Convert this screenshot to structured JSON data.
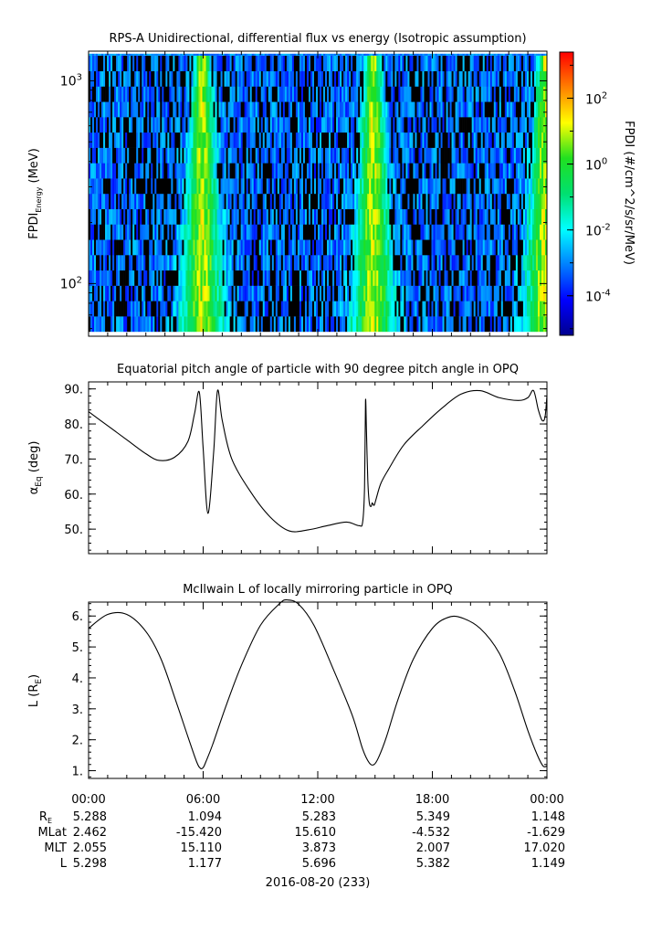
{
  "chart_data": [
    {
      "type": "heatmap",
      "title": "RPS-A Unidirectional, differential flux vs energy (Isotropic assumption)",
      "ylabel_main": "FPDI",
      "ylabel_sub": "Energy",
      "ylabel_unit": " (MeV)",
      "yscale": "log",
      "ylim": [
        55,
        1400
      ],
      "xlim_hours": [
        0,
        24
      ],
      "ytick_labels": [
        {
          "base": "10",
          "exp": "3",
          "value": 1000
        },
        {
          "base": "10",
          "exp": "2",
          "value": 100
        }
      ],
      "energy_top_band": 1330,
      "energy_columns_start": 1150,
      "high_flux_times_hours": [
        5.95,
        14.9,
        23.9
      ],
      "colorbar": {
        "label": "FPDI (#/cm^2/s/sr/MeV)",
        "scale": "log",
        "zlim_log10": [
          -5.2,
          3.4
        ],
        "tick_labels": [
          {
            "base": "10",
            "exp": "2",
            "value": 2
          },
          {
            "base": "10",
            "exp": "0",
            "value": 0
          },
          {
            "base": "10",
            "exp": "-2",
            "value": -2
          },
          {
            "base": "10",
            "exp": "-4",
            "value": -4
          }
        ],
        "colors": [
          "#00008f",
          "#0000ff",
          "#0080ff",
          "#00ffff",
          "#00e070",
          "#20e020",
          "#ffff00",
          "#ff8000",
          "#ff0000"
        ]
      }
    },
    {
      "type": "line",
      "title": "Equatorial pitch angle of particle with 90 degree pitch angle in OPQ",
      "ylabel_main": "α",
      "ylabel_sub": "Eq",
      "ylabel_unit": " (deg)",
      "ylim": [
        43,
        92
      ],
      "yticks": [
        50,
        60,
        70,
        80,
        90
      ],
      "ytick_labels": [
        "50.",
        "60.",
        "70.",
        "80.",
        "90."
      ],
      "x_hours": [
        0,
        1,
        2,
        3,
        3.7,
        4.5,
        5.2,
        5.55,
        5.8,
        6.0,
        6.25,
        6.55,
        6.75,
        7.0,
        7.5,
        8.5,
        9.5,
        10.5,
        11.5,
        12.5,
        13.5,
        14.15,
        14.35,
        14.45,
        14.5,
        14.55,
        14.62,
        14.7,
        14.8,
        14.85,
        14.95,
        15.05,
        15.3,
        15.7,
        16.5,
        17.5,
        18.5,
        19.5,
        20.5,
        21.5,
        22.5,
        23.0,
        23.3,
        23.55,
        23.75,
        23.9,
        24.0
      ],
      "values": [
        83.5,
        79.5,
        75.5,
        71.5,
        69.6,
        70.5,
        75,
        83,
        89,
        73,
        54.5,
        72,
        89.5,
        81,
        70,
        60.5,
        53.5,
        49.5,
        49.8,
        51,
        52,
        51,
        52,
        62,
        86.5,
        78,
        64,
        57.5,
        56.5,
        57.5,
        56.8,
        58.5,
        63,
        67,
        74,
        79.5,
        84.5,
        88.5,
        89.5,
        87.5,
        86.7,
        87.5,
        89.5,
        84,
        81,
        82,
        88
      ]
    },
    {
      "type": "line",
      "title": "McIlwain L of locally mirroring particle in OPQ",
      "ylabel_main": "L (R",
      "ylabel_sub": "E",
      "ylabel_unit": ")",
      "ylim": [
        0.75,
        6.45
      ],
      "yticks": [
        1,
        2,
        3,
        4,
        5,
        6
      ],
      "ytick_labels": [
        "1.",
        "2.",
        "3.",
        "4.",
        "5.",
        "6."
      ],
      "x_hours": [
        0,
        1,
        2,
        3,
        3.8,
        4.6,
        5.2,
        5.65,
        5.85,
        6.0,
        6.15,
        6.5,
        7.2,
        8.0,
        9.0,
        10.0,
        10.4,
        11.0,
        11.8,
        12.8,
        13.8,
        14.35,
        14.7,
        14.95,
        15.2,
        15.6,
        16.2,
        17.0,
        18.0,
        18.8,
        19.5,
        20.5,
        21.5,
        22.3,
        23.0,
        23.5,
        23.8,
        24.0
      ],
      "values": [
        5.6,
        6.05,
        6.05,
        5.5,
        4.6,
        3.2,
        2.1,
        1.3,
        1.08,
        1.1,
        1.3,
        1.85,
        3.1,
        4.4,
        5.7,
        6.4,
        6.52,
        6.38,
        5.7,
        4.3,
        2.8,
        1.7,
        1.25,
        1.2,
        1.45,
        2.1,
        3.3,
        4.6,
        5.6,
        5.95,
        5.95,
        5.6,
        4.8,
        3.6,
        2.3,
        1.5,
        1.15,
        1.15
      ]
    }
  ],
  "time_axis": {
    "tick_labels": [
      "00:00",
      "06:00",
      "12:00",
      "18:00",
      "00:00"
    ],
    "date_label": "2016-08-20 (233)"
  },
  "ephemeris": {
    "rows": [
      {
        "name": "R",
        "sub": "E",
        "values": [
          "5.288",
          "1.094",
          "5.283",
          "5.349",
          "1.148"
        ]
      },
      {
        "name": "MLat",
        "sub": "",
        "values": [
          "2.462",
          "-15.420",
          "15.610",
          "-4.532",
          "-1.629"
        ]
      },
      {
        "name": "MLT",
        "sub": "",
        "values": [
          "2.055",
          "15.110",
          "3.873",
          "2.007",
          "17.020"
        ]
      },
      {
        "name": "L",
        "sub": "",
        "values": [
          "5.298",
          "1.177",
          "5.696",
          "5.382",
          "1.149"
        ]
      }
    ]
  }
}
